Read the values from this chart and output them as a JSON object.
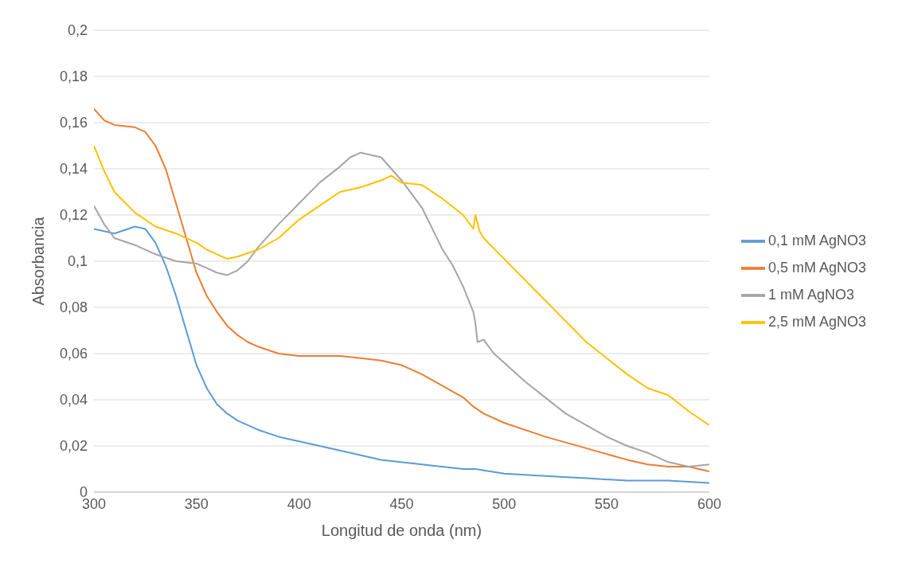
{
  "chart_data": {
    "type": "line",
    "xlabel": "Longitud de onda (nm)",
    "ylabel": "Absorbancia",
    "xlim": [
      300,
      600
    ],
    "xticks": [
      300,
      350,
      400,
      450,
      500,
      550,
      600
    ],
    "ylim": [
      0,
      0.2
    ],
    "yticks": [
      0,
      {
        "value": 0.02,
        "label": "0,02"
      },
      {
        "value": 0.04,
        "label": "0,04"
      },
      {
        "value": 0.06,
        "label": "0,06"
      },
      {
        "value": 0.08,
        "label": "0,08"
      },
      {
        "value": 0.1,
        "label": "0,1"
      },
      {
        "value": 0.12,
        "label": "0,12"
      },
      {
        "value": 0.14,
        "label": "0,14"
      },
      {
        "value": 0.16,
        "label": "0,16"
      },
      {
        "value": 0.18,
        "label": "0,18"
      },
      {
        "value": 0.2,
        "label": "0,2"
      }
    ],
    "grid": "y",
    "legend": "right",
    "marker": "none",
    "line_style": "solid",
    "series": [
      {
        "name": "0,1 mM AgNO3",
        "color": "#5b9bd5",
        "x": [
          300,
          310,
          320,
          325,
          330,
          335,
          340,
          345,
          350,
          355,
          360,
          365,
          370,
          380,
          390,
          400,
          420,
          440,
          460,
          480,
          486,
          500,
          520,
          540,
          560,
          580,
          600
        ],
        "values": [
          0.114,
          0.112,
          0.115,
          0.114,
          0.108,
          0.098,
          0.085,
          0.07,
          0.055,
          0.045,
          0.038,
          0.034,
          0.031,
          0.027,
          0.024,
          0.022,
          0.018,
          0.014,
          0.012,
          0.01,
          0.01,
          0.008,
          0.007,
          0.006,
          0.005,
          0.005,
          0.004
        ]
      },
      {
        "name": "0,5 mM AgNO3",
        "color": "#ed7d31",
        "x": [
          300,
          305,
          310,
          320,
          325,
          330,
          335,
          340,
          345,
          350,
          355,
          360,
          365,
          370,
          375,
          380,
          390,
          400,
          420,
          430,
          440,
          450,
          460,
          470,
          480,
          485,
          490,
          500,
          520,
          540,
          560,
          570,
          580,
          590,
          600
        ],
        "values": [
          0.166,
          0.161,
          0.159,
          0.158,
          0.156,
          0.15,
          0.14,
          0.125,
          0.11,
          0.095,
          0.085,
          0.078,
          0.072,
          0.068,
          0.065,
          0.063,
          0.06,
          0.059,
          0.059,
          0.058,
          0.057,
          0.055,
          0.051,
          0.046,
          0.041,
          0.037,
          0.034,
          0.03,
          0.024,
          0.019,
          0.014,
          0.012,
          0.011,
          0.011,
          0.009
        ]
      },
      {
        "name": "1 mM AgNO3",
        "color": "#a5a5a5",
        "x": [
          300,
          305,
          310,
          320,
          330,
          340,
          350,
          355,
          360,
          365,
          370,
          375,
          380,
          385,
          390,
          400,
          410,
          420,
          425,
          430,
          440,
          445,
          450,
          455,
          460,
          465,
          470,
          475,
          480,
          485,
          486,
          487,
          490,
          495,
          500,
          510,
          520,
          530,
          540,
          550,
          560,
          570,
          580,
          590,
          600
        ],
        "values": [
          0.124,
          0.116,
          0.11,
          0.107,
          0.103,
          0.1,
          0.099,
          0.097,
          0.095,
          0.094,
          0.096,
          0.1,
          0.106,
          0.111,
          0.116,
          0.125,
          0.134,
          0.141,
          0.145,
          0.147,
          0.145,
          0.14,
          0.135,
          0.129,
          0.123,
          0.114,
          0.105,
          0.098,
          0.089,
          0.078,
          0.073,
          0.065,
          0.066,
          0.06,
          0.056,
          0.048,
          0.041,
          0.034,
          0.029,
          0.024,
          0.02,
          0.017,
          0.013,
          0.011,
          0.012
        ]
      },
      {
        "name": "2,5 mM AgNO3",
        "color": "#ffc000",
        "x": [
          300,
          305,
          310,
          320,
          330,
          340,
          350,
          355,
          360,
          365,
          370,
          380,
          390,
          400,
          410,
          420,
          430,
          440,
          445,
          450,
          460,
          470,
          480,
          485,
          486,
          488,
          490,
          500,
          510,
          520,
          530,
          540,
          550,
          560,
          570,
          580,
          590,
          600
        ],
        "values": [
          0.15,
          0.139,
          0.13,
          0.121,
          0.115,
          0.112,
          0.108,
          0.105,
          0.103,
          0.101,
          0.102,
          0.105,
          0.11,
          0.118,
          0.124,
          0.13,
          0.132,
          0.135,
          0.137,
          0.134,
          0.133,
          0.127,
          0.12,
          0.114,
          0.12,
          0.113,
          0.11,
          0.101,
          0.092,
          0.083,
          0.074,
          0.065,
          0.058,
          0.051,
          0.045,
          0.042,
          0.035,
          0.029
        ]
      }
    ]
  }
}
